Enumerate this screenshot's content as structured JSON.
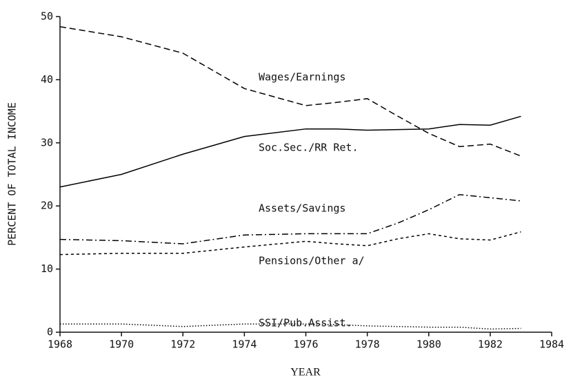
{
  "chart_data": {
    "type": "line",
    "xlabel": "YEAR",
    "ylabel": "PERCENT OF TOTAL INCOME",
    "x": [
      1968,
      1970,
      1972,
      1974,
      1976,
      1977,
      1978,
      1979,
      1980,
      1981,
      1982,
      1983
    ],
    "series": [
      {
        "name": "Wages/Earnings",
        "color": "#000000",
        "dash": "dashed",
        "values": [
          48.4,
          46.8,
          44.2,
          38.6,
          35.9,
          36.4,
          37,
          34.2,
          31.5,
          29.4,
          29.8,
          27.9
        ]
      },
      {
        "name": "Soc.Sec./RR Ret.",
        "color": "#000000",
        "dash": "solid",
        "values": [
          23,
          25,
          28.2,
          31,
          32.2,
          32.2,
          32,
          32.1,
          32.2,
          32.9,
          32.8,
          34.2
        ]
      },
      {
        "name": "Assets/Savings",
        "color": "#000000",
        "dash": "dashdot",
        "values": [
          14.7,
          14.5,
          14,
          15.4,
          15.6,
          15.6,
          15.6,
          17.3,
          19.4,
          21.8,
          21.3,
          20.8
        ]
      },
      {
        "name": "Pensions/Other a/",
        "color": "#000000",
        "dash": "shortdash",
        "values": [
          12.3,
          12.5,
          12.5,
          13.5,
          14.4,
          14.0,
          13.7,
          14.8,
          15.6,
          14.8,
          14.6,
          15.9
        ]
      },
      {
        "name": "SSI/Pub.Assist.",
        "color": "#000000",
        "dash": "dotted",
        "values": [
          1.3,
          1.3,
          0.9,
          1.3,
          1.3,
          1.2,
          1.0,
          0.9,
          0.8,
          0.8,
          0.5,
          0.6
        ]
      }
    ],
    "xlim": [
      1968,
      1984
    ],
    "xticks": [
      1968,
      1970,
      1972,
      1974,
      1976,
      1978,
      1980,
      1982,
      1984
    ],
    "ylim": [
      0,
      50
    ],
    "yticks": [
      0,
      10,
      20,
      30,
      40,
      50
    ]
  }
}
